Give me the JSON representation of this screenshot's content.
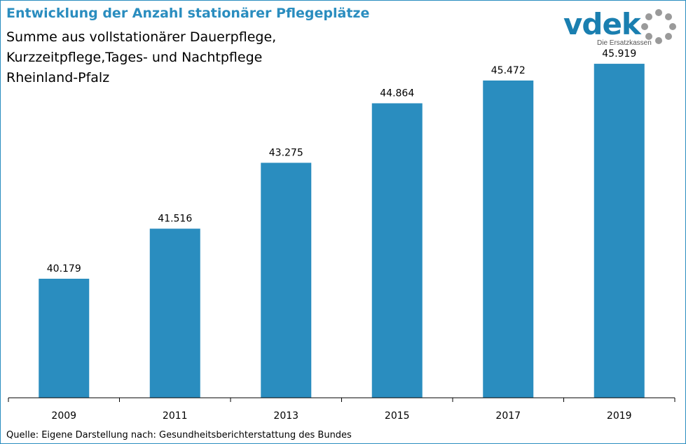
{
  "title": "Entwicklung der Anzahl stationärer Pflegeplätze",
  "subtitle_lines": [
    "Summe aus vollstationärer Dauerpflege,",
    "Kurzzeitpflege,Tages- und Nachtpflege",
    "Rheinland-Pfalz"
  ],
  "logo": {
    "wordmark": "vdek",
    "tagline": "Die Ersatzkassen"
  },
  "source": "Quelle: Eigene Darstellung nach: Gesundheitsberichterstattung  des Bundes",
  "colors": {
    "bar": "#2a8dbf",
    "title": "#2a8dbf",
    "border": "#2a8dbf",
    "axis": "#000000"
  },
  "chart_data": {
    "type": "bar",
    "categories": [
      "2009",
      "2011",
      "2013",
      "2015",
      "2017",
      "2019"
    ],
    "values": [
      40179,
      41516,
      43275,
      44864,
      45472,
      45919
    ],
    "value_labels": [
      "40.179",
      "41.516",
      "43.275",
      "44.864",
      "45.472",
      "45.919"
    ],
    "title": "Entwicklung der Anzahl stationärer Pflegeplätze",
    "xlabel": "",
    "ylabel": "",
    "ylim": [
      37000,
      46500
    ],
    "grid": false,
    "legend": "none"
  }
}
